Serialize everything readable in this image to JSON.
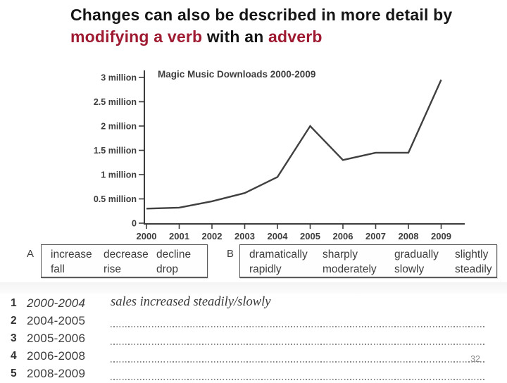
{
  "slide": {
    "title": {
      "line1": "Changes can also be described in more detail by",
      "line2_parts": [
        {
          "text": "modifying a verb",
          "accent": true
        },
        {
          "text": " with an ",
          "accent": false
        },
        {
          "text": "adverb",
          "accent": true
        }
      ]
    },
    "page_number": "32",
    "colors": {
      "accent": "#9e1b32",
      "title_text": "#151515",
      "chart_ink": "#3d3d3d",
      "dotted_line": "#8a8a8a",
      "page_number": "#8a8a8a"
    }
  },
  "chart_data": {
    "type": "line",
    "title": "Magic Music Downloads 2000-2009",
    "x": [
      2000,
      2001,
      2002,
      2003,
      2004,
      2005,
      2006,
      2007,
      2008,
      2009
    ],
    "values": [
      0.3,
      0.32,
      0.45,
      0.62,
      0.95,
      2.0,
      1.3,
      1.45,
      1.45,
      2.95
    ],
    "y_ticks": [
      0,
      0.5,
      1,
      1.5,
      2,
      2.5,
      3
    ],
    "y_tick_labels": [
      "0",
      "0.5 million",
      "1 million",
      "1.5 million",
      "2 million",
      "2.5 million",
      "3 million"
    ],
    "ylim": [
      0,
      3.15
    ],
    "xlabel": "",
    "ylabel": "",
    "grid": false,
    "legend": "none",
    "line_color": "#404040"
  },
  "word_boxes": [
    {
      "label": "A",
      "rows": [
        [
          "increase",
          "decrease",
          "decline"
        ],
        [
          "fall",
          "rise",
          "drop"
        ]
      ]
    },
    {
      "label": "B",
      "rows": [
        [
          "dramatically",
          "sharply",
          "gradually",
          "slightly"
        ],
        [
          "rapidly",
          "moderately",
          "slowly",
          "steadily"
        ]
      ]
    }
  ],
  "exercise": {
    "items": [
      {
        "num": "1",
        "range": "2000-2004",
        "answer": "sales increased steadily/slowly",
        "filled": true
      },
      {
        "num": "2",
        "range": "2004-2005",
        "answer": "",
        "filled": false
      },
      {
        "num": "3",
        "range": "2005-2006",
        "answer": "",
        "filled": false
      },
      {
        "num": "4",
        "range": "2006-2008",
        "answer": "",
        "filled": false
      },
      {
        "num": "5",
        "range": "2008-2009",
        "answer": "",
        "filled": false
      }
    ]
  }
}
